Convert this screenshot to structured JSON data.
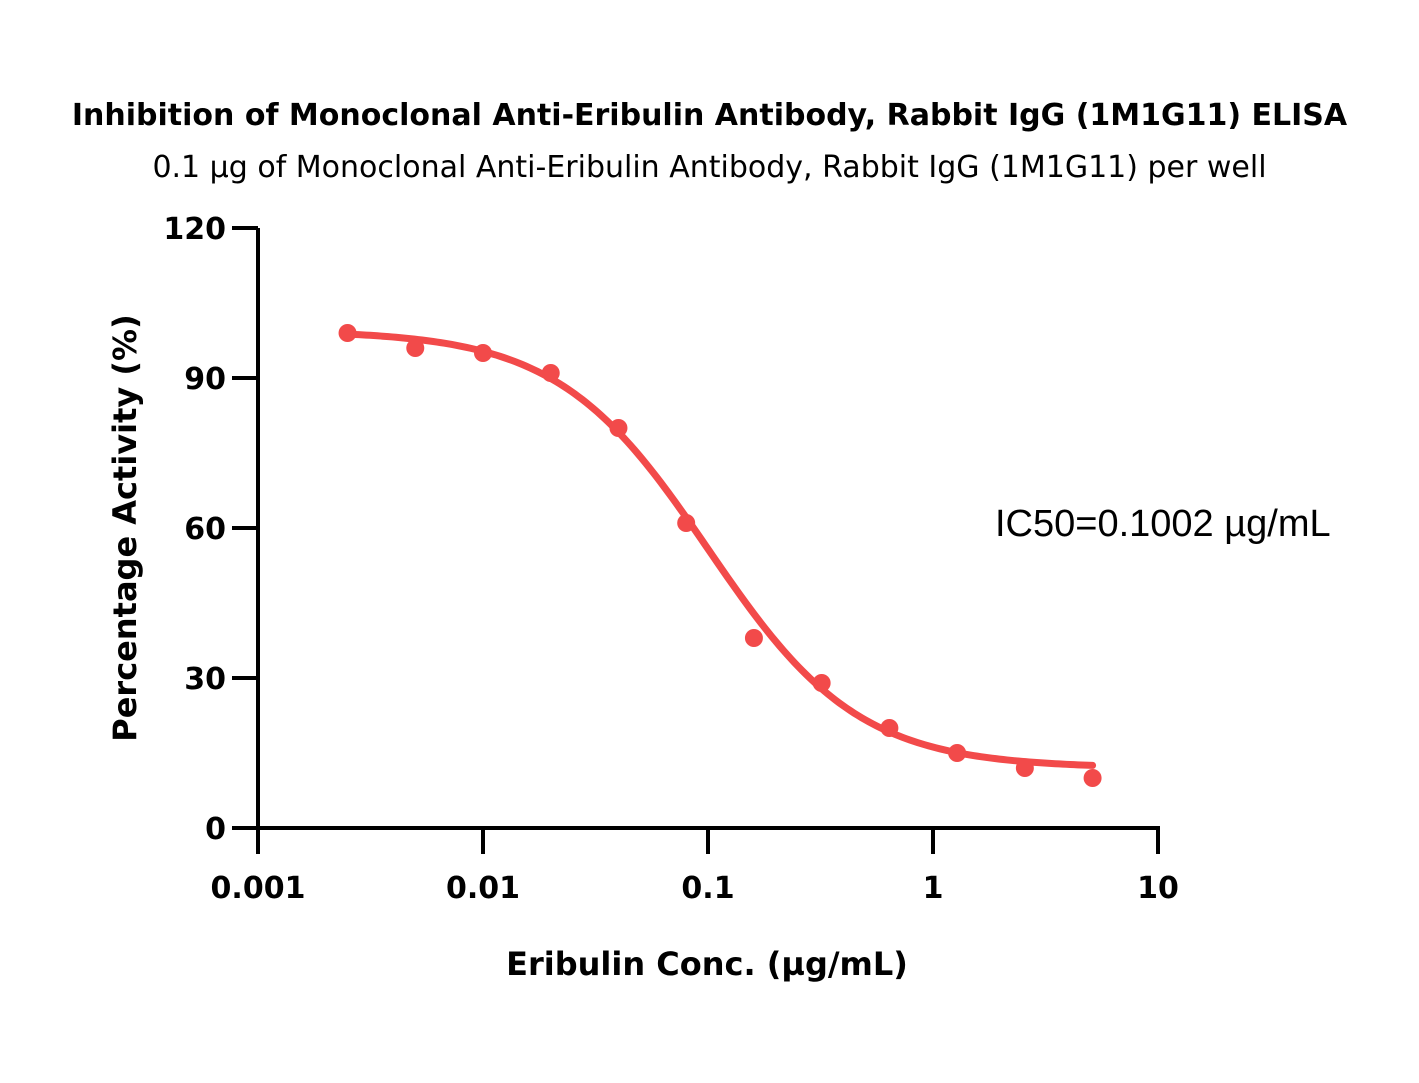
{
  "chart_data": {
    "type": "scatter",
    "title": "Inhibition of Monoclonal Anti-Eribulin Antibody, Rabbit IgG (1M1G11) ELISA",
    "subtitle": "0.1 µg of Monoclonal Anti-Eribulin Antibody, Rabbit IgG (1M1G11) per well",
    "xlabel": "Eribulin Conc. (µg/mL)",
    "ylabel": "Percentage Activity (%)",
    "x_scale": "log",
    "xlim": [
      0.001,
      10
    ],
    "ylim": [
      0,
      120
    ],
    "x_ticks": [
      "0.001",
      "0.01",
      "0.1",
      "1",
      "10"
    ],
    "y_ticks": [
      "0",
      "30",
      "60",
      "90",
      "120"
    ],
    "grid": false,
    "color": "#f24a4a",
    "series": [
      {
        "x": [
          0.0025,
          0.005,
          0.01,
          0.02,
          0.04,
          0.08,
          0.16,
          0.32,
          0.64,
          1.28,
          2.56,
          5.12
        ],
        "y": [
          99,
          96,
          95,
          91,
          80,
          61,
          38,
          29,
          20,
          15,
          12,
          10
        ]
      }
    ],
    "fit": {
      "bottom": 12,
      "top": 99.5,
      "ic50": 0.1002,
      "hill": 1.3
    },
    "annotation": "IC50=0.1002 µg/mL"
  }
}
